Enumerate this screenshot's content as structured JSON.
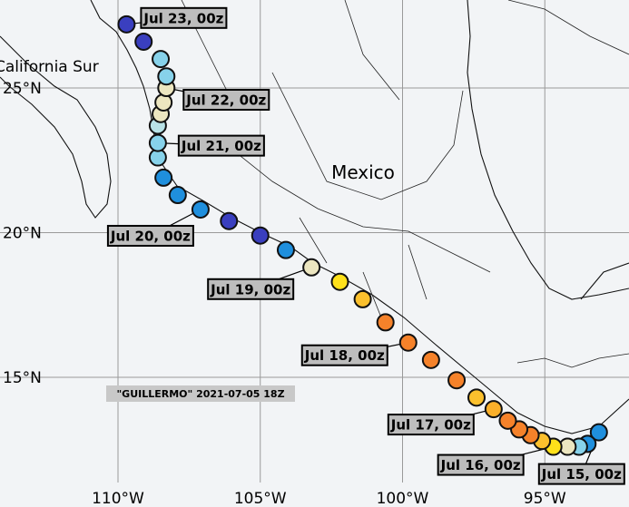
{
  "map": {
    "title": "\"GUILLERMO\" 2021-07-05 18Z",
    "places": [
      "Mexico",
      "California Sur"
    ],
    "lon_ticks": [
      {
        "value": -110,
        "label": "110°W"
      },
      {
        "value": -105,
        "label": "105°W"
      },
      {
        "value": -100,
        "label": "100°W"
      },
      {
        "value": -95,
        "label": "95°W"
      }
    ],
    "lat_ticks": [
      {
        "value": 25,
        "label": "25°N"
      },
      {
        "value": 20,
        "label": "20°N"
      },
      {
        "value": 15,
        "label": "15°N"
      }
    ],
    "track": [
      {
        "lon": -93.1,
        "lat": 13.1,
        "color": "#1f8fdd",
        "label": "Jul 15, 00z"
      },
      {
        "lon": -93.5,
        "lat": 12.7,
        "color": "#1f8fdd"
      },
      {
        "lon": -93.8,
        "lat": 12.6,
        "color": "#87d2ea"
      },
      {
        "lon": -94.2,
        "lat": 12.6,
        "color": "#ece6c0"
      },
      {
        "lon": -94.7,
        "lat": 12.6,
        "color": "#ffe11a",
        "label": "Jul 16, 00z"
      },
      {
        "lon": -95.1,
        "lat": 12.8,
        "color": "#fbc02d"
      },
      {
        "lon": -95.5,
        "lat": 13.0,
        "color": "#f5822a"
      },
      {
        "lon": -95.9,
        "lat": 13.2,
        "color": "#f5822a"
      },
      {
        "lon": -96.3,
        "lat": 13.5,
        "color": "#f5822a"
      },
      {
        "lon": -96.8,
        "lat": 13.9,
        "color": "#fbb02a",
        "label": "Jul 17, 00z"
      },
      {
        "lon": -97.4,
        "lat": 14.3,
        "color": "#fbc02d"
      },
      {
        "lon": -98.1,
        "lat": 14.9,
        "color": "#f5822a"
      },
      {
        "lon": -99.0,
        "lat": 15.6,
        "color": "#f5822a"
      },
      {
        "lon": -99.8,
        "lat": 16.2,
        "color": "#f5822a",
        "label": "Jul 18, 00z"
      },
      {
        "lon": -100.6,
        "lat": 16.9,
        "color": "#f5822a"
      },
      {
        "lon": -101.4,
        "lat": 17.7,
        "color": "#fbc02d"
      },
      {
        "lon": -102.2,
        "lat": 18.3,
        "color": "#ffe11a"
      },
      {
        "lon": -103.2,
        "lat": 18.8,
        "color": "#ece6c0",
        "label": "Jul 19, 00z"
      },
      {
        "lon": -104.1,
        "lat": 19.4,
        "color": "#1f8fdd"
      },
      {
        "lon": -105.0,
        "lat": 19.9,
        "color": "#3a3fbf"
      },
      {
        "lon": -106.1,
        "lat": 20.4,
        "color": "#3a3fbf"
      },
      {
        "lon": -107.1,
        "lat": 20.8,
        "color": "#1f8fdd",
        "label": "Jul 20, 00z"
      },
      {
        "lon": -107.9,
        "lat": 21.3,
        "color": "#1f8fdd"
      },
      {
        "lon": -108.4,
        "lat": 21.9,
        "color": "#1f8fdd"
      },
      {
        "lon": -108.6,
        "lat": 22.6,
        "color": "#87d2ea"
      },
      {
        "lon": -108.6,
        "lat": 23.1,
        "color": "#87d2ea",
        "label": "Jul 21, 00z"
      },
      {
        "lon": -108.6,
        "lat": 23.7,
        "color": "#b8e2e6"
      },
      {
        "lon": -108.5,
        "lat": 24.1,
        "color": "#ece6c0"
      },
      {
        "lon": -108.4,
        "lat": 24.5,
        "color": "#ece6c0"
      },
      {
        "lon": -108.3,
        "lat": 25.0,
        "color": "#ece6c0",
        "label": "Jul 22, 00z"
      },
      {
        "lon": -108.3,
        "lat": 25.4,
        "color": "#87d2ea"
      },
      {
        "lon": -108.5,
        "lat": 26.0,
        "color": "#87d2ea"
      },
      {
        "lon": -109.1,
        "lat": 26.6,
        "color": "#3a3fbf"
      },
      {
        "lon": -109.7,
        "lat": 27.2,
        "color": "#3a3fbf",
        "label": "Jul 23, 00z"
      }
    ]
  }
}
